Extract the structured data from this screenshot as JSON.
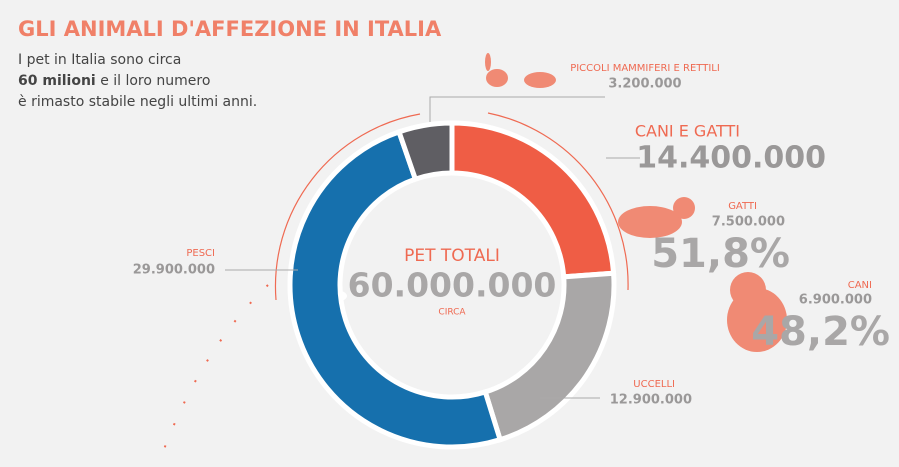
{
  "chart_data": {
    "type": "donut",
    "title": "GLI ANIMALI D'AFFEZIONE IN ITALIA",
    "subtitle": [
      "I pet in Italia sono circa",
      "60 milioni",
      "e il loro numero",
      "è rimasto stabile negli ultimi anni."
    ],
    "center": {
      "label": "PET TOTALI",
      "total": "60.000.000",
      "note": "CIRCA"
    },
    "categories": [
      "CANI E GATTI",
      "UCCELLI",
      "PESCI",
      "PICCOLI MAMMIFERI E RETTILI"
    ],
    "values": [
      14400000,
      12900000,
      29900000,
      3200000
    ],
    "value_labels": [
      "14.400.000",
      "12.900.000",
      "29.900.000",
      "3.200.000"
    ],
    "colors": [
      "#ef5d45",
      "#a9a7a7",
      "#1670ad",
      "#5f5e63"
    ],
    "breakdown": [
      {
        "name": "GATTI",
        "count": "7.500.000",
        "share": "51,8%"
      },
      {
        "name": "CANI",
        "count": "6.900.000",
        "share": "48,2%"
      }
    ]
  }
}
